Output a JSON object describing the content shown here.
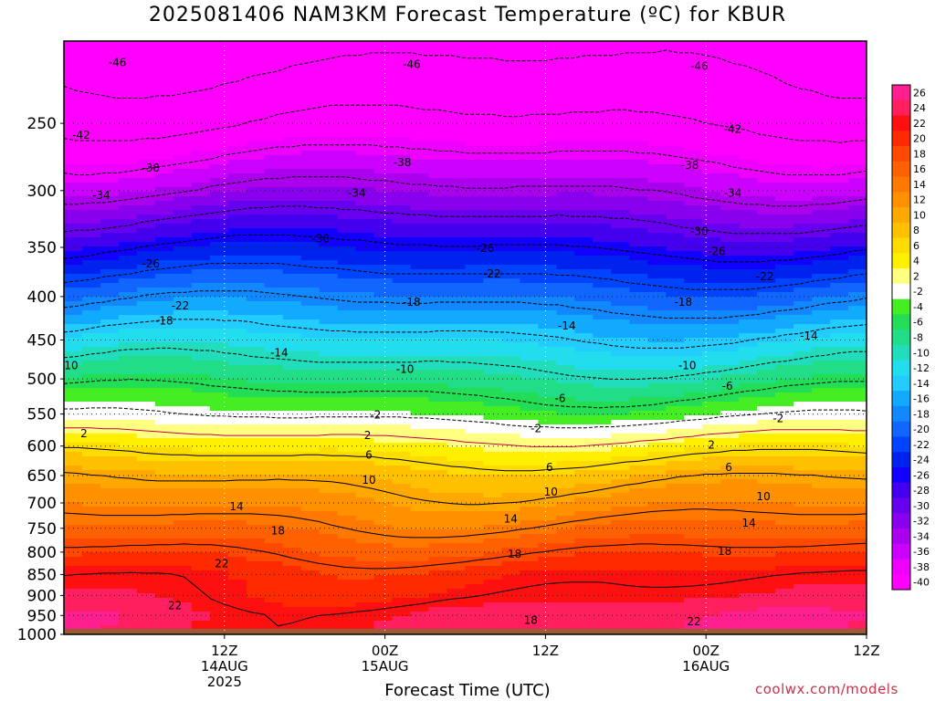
{
  "title": "2025081406 NAM3KM Forecast Temperature (ºC) for KBUR",
  "xlabel": "Forecast Time (UTC)",
  "credit": "coolwx.com/models",
  "chart_data": {
    "type": "heatmap",
    "title": "2025081406 NAM3KM Forecast Temperature (ºC) for KBUR",
    "xlabel": "Forecast Time (UTC)",
    "ylabel": "",
    "xlim": [
      -6,
      54
    ],
    "ylim_log": [
      1000,
      200
    ],
    "y_scale": "log-pressure",
    "grid": true,
    "x_ticks": [
      {
        "hour": 6,
        "lines": [
          "12Z",
          "14AUG",
          "2025"
        ]
      },
      {
        "hour": 18,
        "lines": [
          "00Z",
          "15AUG"
        ]
      },
      {
        "hour": 30,
        "lines": [
          "12Z"
        ]
      },
      {
        "hour": 42,
        "lines": [
          "00Z",
          "16AUG"
        ]
      },
      {
        "hour": 54,
        "lines": [
          "12Z"
        ]
      }
    ],
    "y_ticks": [
      250,
      300,
      350,
      400,
      450,
      500,
      550,
      600,
      650,
      700,
      750,
      800,
      850,
      900,
      950,
      1000
    ],
    "colorbar": {
      "labels": [
        "26",
        "24",
        "22",
        "20",
        "18",
        "16",
        "14",
        "12",
        "10",
        "8",
        "6",
        "4",
        "2",
        "-2",
        "-4",
        "-6",
        "-8",
        "-10",
        "-12",
        "-14",
        "-16",
        "-18",
        "-20",
        "-22",
        "-24",
        "-26",
        "-28",
        "-30",
        "-32",
        "-34",
        "-36",
        "-38",
        "-40"
      ],
      "colors": [
        "#ff1f8f",
        "#ff1f5f",
        "#ff1010",
        "#ff2a00",
        "#ff4800",
        "#ff6000",
        "#ff7800",
        "#ff9000",
        "#ffa800",
        "#ffc000",
        "#ffdc00",
        "#fff000",
        "#ffff80",
        "#ffffff",
        "#44ee22",
        "#22dd55",
        "#22dd88",
        "#22ddbb",
        "#22ddee",
        "#22ccff",
        "#11aaff",
        "#1188ff",
        "#1166ff",
        "#0044ff",
        "#0022ee",
        "#1100ff",
        "#4400ee",
        "#6600ee",
        "#8800ee",
        "#aa00ee",
        "#cc00ff",
        "#ee00ff",
        "#ff00ff"
      ]
    },
    "temperature_profile": [
      {
        "p": 1000,
        "t": 24
      },
      {
        "p": 950,
        "t": 24
      },
      {
        "p": 900,
        "t": 22
      },
      {
        "p": 850,
        "t": 21
      },
      {
        "p": 800,
        "t": 18
      },
      {
        "p": 750,
        "t": 15
      },
      {
        "p": 700,
        "t": 12
      },
      {
        "p": 650,
        "t": 9
      },
      {
        "p": 600,
        "t": 4
      },
      {
        "p": 570,
        "t": 0
      },
      {
        "p": 550,
        "t": -3
      },
      {
        "p": 500,
        "t": -8
      },
      {
        "p": 450,
        "t": -13
      },
      {
        "p": 400,
        "t": -19
      },
      {
        "p": 350,
        "t": -26
      },
      {
        "p": 300,
        "t": -34
      },
      {
        "p": 250,
        "t": -42
      },
      {
        "p": 200,
        "t": -48
      }
    ],
    "contours": {
      "dashed_negative": [
        "-46",
        "-42",
        "-38",
        "-34",
        "-30",
        "-26",
        "-22",
        "-18",
        "-14",
        "-10",
        "-6",
        "-2"
      ],
      "solid_positive": [
        "2",
        "6",
        "10",
        "14",
        "18",
        "22"
      ],
      "labels": [
        {
          "v": "-46",
          "x": -2.0,
          "p": 212
        },
        {
          "v": "-46",
          "x": 20.0,
          "p": 213
        },
        {
          "v": "-46",
          "x": 41.5,
          "p": 214
        },
        {
          "v": "-42",
          "x": -4.7,
          "p": 258
        },
        {
          "v": "-42",
          "x": 44.0,
          "p": 254
        },
        {
          "v": "-38",
          "x": 0.5,
          "p": 282
        },
        {
          "v": "-38",
          "x": 19.3,
          "p": 278
        },
        {
          "v": "-38",
          "x": 40.8,
          "p": 280
        },
        {
          "v": "-34",
          "x": -3.2,
          "p": 304
        },
        {
          "v": "-34",
          "x": 15.9,
          "p": 302
        },
        {
          "v": "-34",
          "x": 44.0,
          "p": 302
        },
        {
          "v": "-30",
          "x": 13.2,
          "p": 342
        },
        {
          "v": "-30",
          "x": 41.5,
          "p": 335
        },
        {
          "v": "-26",
          "x": 0.5,
          "p": 366
        },
        {
          "v": "-26",
          "x": 25.5,
          "p": 351
        },
        {
          "v": "-26",
          "x": 42.8,
          "p": 354
        },
        {
          "v": "-22",
          "x": 26.0,
          "p": 376
        },
        {
          "v": "-22",
          "x": 2.7,
          "p": 410
        },
        {
          "v": "-22",
          "x": 46.4,
          "p": 379
        },
        {
          "v": "-18",
          "x": 20.0,
          "p": 406
        },
        {
          "v": "-18",
          "x": 1.5,
          "p": 427
        },
        {
          "v": "-18",
          "x": 40.3,
          "p": 406
        },
        {
          "v": "-14",
          "x": 10.1,
          "p": 466
        },
        {
          "v": "-14",
          "x": 31.6,
          "p": 433
        },
        {
          "v": "-14",
          "x": 49.7,
          "p": 445
        },
        {
          "v": "-10",
          "x": -5.6,
          "p": 482
        },
        {
          "v": "-10",
          "x": 19.5,
          "p": 487
        },
        {
          "v": "-10",
          "x": 40.6,
          "p": 482
        },
        {
          "v": "-6",
          "x": 31.1,
          "p": 527
        },
        {
          "v": "-6",
          "x": 43.6,
          "p": 510
        },
        {
          "v": "-2",
          "x": 17.3,
          "p": 551
        },
        {
          "v": "-2",
          "x": 29.3,
          "p": 572
        },
        {
          "v": "-2",
          "x": 47.4,
          "p": 557
        },
        {
          "v": "2",
          "x": -4.5,
          "p": 580
        },
        {
          "v": "2",
          "x": 16.7,
          "p": 583
        },
        {
          "v": "2",
          "x": 42.4,
          "p": 598
        },
        {
          "v": "6",
          "x": 16.8,
          "p": 615
        },
        {
          "v": "6",
          "x": 30.3,
          "p": 636
        },
        {
          "v": "6",
          "x": 43.7,
          "p": 636
        },
        {
          "v": "10",
          "x": 16.8,
          "p": 658
        },
        {
          "v": "10",
          "x": 30.4,
          "p": 680
        },
        {
          "v": "10",
          "x": 46.3,
          "p": 688
        },
        {
          "v": "14",
          "x": 6.9,
          "p": 707
        },
        {
          "v": "14",
          "x": 27.4,
          "p": 731
        },
        {
          "v": "14",
          "x": 45.2,
          "p": 739
        },
        {
          "v": "18",
          "x": 10.0,
          "p": 755
        },
        {
          "v": "18",
          "x": 27.7,
          "p": 804
        },
        {
          "v": "18",
          "x": 43.4,
          "p": 798
        },
        {
          "v": "22",
          "x": 5.8,
          "p": 825
        },
        {
          "v": "22",
          "x": 2.3,
          "p": 925
        },
        {
          "v": "22",
          "x": 41.1,
          "p": 966
        },
        {
          "v": "18",
          "x": 28.9,
          "p": 962
        }
      ]
    }
  }
}
